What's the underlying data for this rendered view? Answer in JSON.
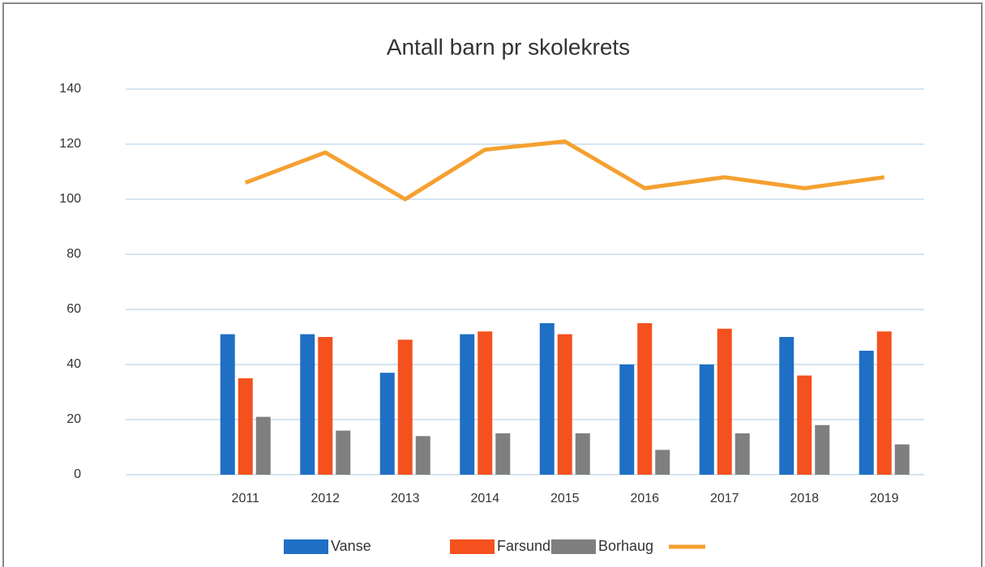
{
  "chart_data": {
    "type": "bar",
    "title": "Antall barn pr skolekrets",
    "categories": [
      null,
      "2011",
      "2012",
      "2013",
      "2014",
      "2015",
      "2016",
      "2017",
      "2018",
      "2019"
    ],
    "series": [
      {
        "name": "Vanse",
        "color": "#1f6fc5",
        "values": [
          null,
          51,
          51,
          37,
          51,
          55,
          40,
          40,
          50,
          45
        ]
      },
      {
        "name": "Farsund",
        "color": "#f4511e",
        "values": [
          null,
          35,
          50,
          49,
          52,
          51,
          55,
          53,
          36,
          52
        ]
      },
      {
        "name": "Borhaug",
        "color": "#7f7f7f",
        "values": [
          null,
          21,
          16,
          14,
          15,
          15,
          9,
          15,
          18,
          11
        ]
      },
      {
        "type": "line",
        "color": "#f5a030",
        "values": [
          null,
          106,
          117,
          100,
          118,
          121,
          104,
          108,
          104,
          108
        ]
      }
    ],
    "ylim": [
      0,
      140
    ],
    "yticks": [
      0,
      20,
      40,
      60,
      80,
      100,
      120,
      140
    ],
    "grid": true
  }
}
